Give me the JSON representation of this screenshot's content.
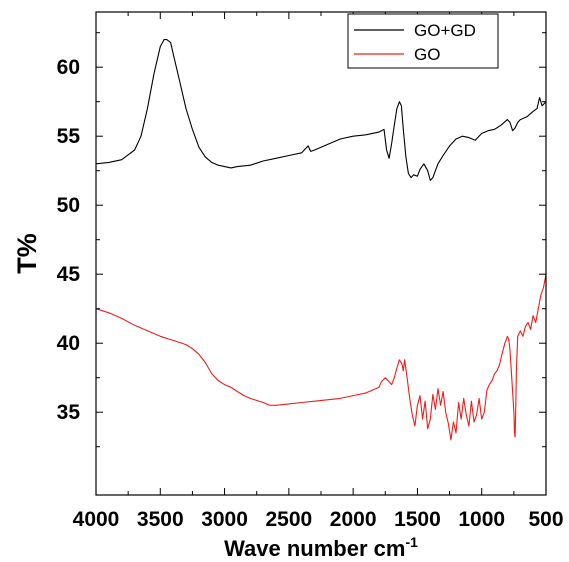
{
  "chart_data": {
    "type": "line",
    "title": "",
    "xlabel": "Wave number cm",
    "xlabel_superscript": "-1",
    "ylabel": "T%",
    "xlim": [
      4000,
      500
    ],
    "ylim": [
      29,
      64
    ],
    "x_reversed": true,
    "x_ticks": [
      4000,
      3500,
      3000,
      2500,
      2000,
      1500,
      1000,
      500
    ],
    "x_tick_labels": [
      "4000",
      "3500",
      "3000",
      "2500",
      "2000",
      "1500",
      "1000",
      "500"
    ],
    "y_ticks": [
      35,
      40,
      45,
      50,
      55,
      60
    ],
    "y_tick_labels": [
      "35",
      "40",
      "45",
      "50",
      "55",
      "60"
    ],
    "grid": false,
    "legend_position": "top-right",
    "series": [
      {
        "name": "GO+GD",
        "color": "#000000",
        "x": [
          4000,
          3900,
          3800,
          3700,
          3650,
          3600,
          3550,
          3500,
          3470,
          3450,
          3420,
          3400,
          3350,
          3300,
          3250,
          3200,
          3150,
          3100,
          3050,
          3000,
          2950,
          2900,
          2800,
          2700,
          2600,
          2500,
          2400,
          2350,
          2330,
          2300,
          2200,
          2100,
          2000,
          1900,
          1800,
          1760,
          1740,
          1720,
          1700,
          1680,
          1660,
          1640,
          1625,
          1610,
          1590,
          1570,
          1550,
          1530,
          1500,
          1480,
          1450,
          1420,
          1400,
          1380,
          1360,
          1340,
          1300,
          1250,
          1200,
          1150,
          1100,
          1050,
          1000,
          950,
          900,
          850,
          800,
          780,
          760,
          740,
          720,
          700,
          650,
          600,
          570,
          550,
          530,
          510,
          500
        ],
        "y": [
          53.0,
          53.1,
          53.3,
          54.0,
          55.0,
          57.0,
          59.5,
          61.5,
          62.0,
          62.0,
          61.8,
          61.0,
          59.0,
          57.0,
          55.5,
          54.2,
          53.5,
          53.1,
          52.9,
          52.8,
          52.7,
          52.8,
          52.9,
          53.2,
          53.4,
          53.6,
          53.8,
          54.3,
          53.9,
          54.0,
          54.4,
          54.8,
          55.0,
          55.1,
          55.3,
          55.5,
          54.0,
          53.4,
          54.5,
          55.8,
          57.0,
          57.5,
          57.2,
          55.5,
          53.5,
          52.3,
          52.0,
          52.2,
          52.1,
          52.6,
          53.0,
          52.5,
          51.8,
          52.0,
          52.5,
          53.0,
          53.6,
          54.3,
          54.8,
          55.0,
          54.9,
          54.7,
          55.2,
          55.4,
          55.5,
          55.8,
          56.2,
          56.0,
          55.4,
          55.6,
          56.0,
          56.2,
          56.4,
          56.8,
          57.0,
          57.8,
          57.2,
          57.4,
          57.5
        ]
      },
      {
        "name": "GO",
        "color": "#e8201c",
        "x": [
          4000,
          3900,
          3800,
          3700,
          3600,
          3500,
          3400,
          3300,
          3250,
          3200,
          3150,
          3100,
          3050,
          3000,
          2950,
          2900,
          2850,
          2800,
          2700,
          2650,
          2600,
          2500,
          2400,
          2300,
          2200,
          2100,
          2000,
          1900,
          1800,
          1780,
          1750,
          1720,
          1700,
          1680,
          1660,
          1640,
          1620,
          1610,
          1600,
          1580,
          1560,
          1540,
          1520,
          1500,
          1480,
          1460,
          1440,
          1420,
          1400,
          1380,
          1360,
          1340,
          1320,
          1300,
          1280,
          1260,
          1240,
          1220,
          1200,
          1180,
          1160,
          1140,
          1120,
          1100,
          1080,
          1060,
          1040,
          1020,
          1000,
          980,
          960,
          940,
          920,
          900,
          880,
          860,
          840,
          820,
          800,
          790,
          780,
          770,
          760,
          750,
          745,
          740,
          735,
          730,
          720,
          700,
          680,
          660,
          640,
          620,
          600,
          580,
          560,
          540,
          520,
          510,
          500
        ],
        "y": [
          42.5,
          42.2,
          41.8,
          41.3,
          40.9,
          40.5,
          40.2,
          39.9,
          39.6,
          39.2,
          38.6,
          37.8,
          37.3,
          37.0,
          36.8,
          36.5,
          36.2,
          36.0,
          35.7,
          35.5,
          35.5,
          35.6,
          35.7,
          35.8,
          35.9,
          36.0,
          36.2,
          36.4,
          36.8,
          37.2,
          37.5,
          37.2,
          37.0,
          37.5,
          38.2,
          38.8,
          38.5,
          38.0,
          38.8,
          37.5,
          36.0,
          34.8,
          34.0,
          35.5,
          36.2,
          34.5,
          35.8,
          33.8,
          34.5,
          36.3,
          35.2,
          36.7,
          35.5,
          36.5,
          35.0,
          34.2,
          33.0,
          34.3,
          33.5,
          35.7,
          34.5,
          36.0,
          34.8,
          34.0,
          35.8,
          34.3,
          34.8,
          36.0,
          34.5,
          35.0,
          36.6,
          37.0,
          37.3,
          37.8,
          38.0,
          38.5,
          39.3,
          40.0,
          40.5,
          40.3,
          39.5,
          38.0,
          36.5,
          35.0,
          33.5,
          33.2,
          35.5,
          38.0,
          40.5,
          40.9,
          40.5,
          41.2,
          41.5,
          41.0,
          42.0,
          41.5,
          42.5,
          43.5,
          44.0,
          44.5,
          45.0
        ]
      }
    ]
  }
}
